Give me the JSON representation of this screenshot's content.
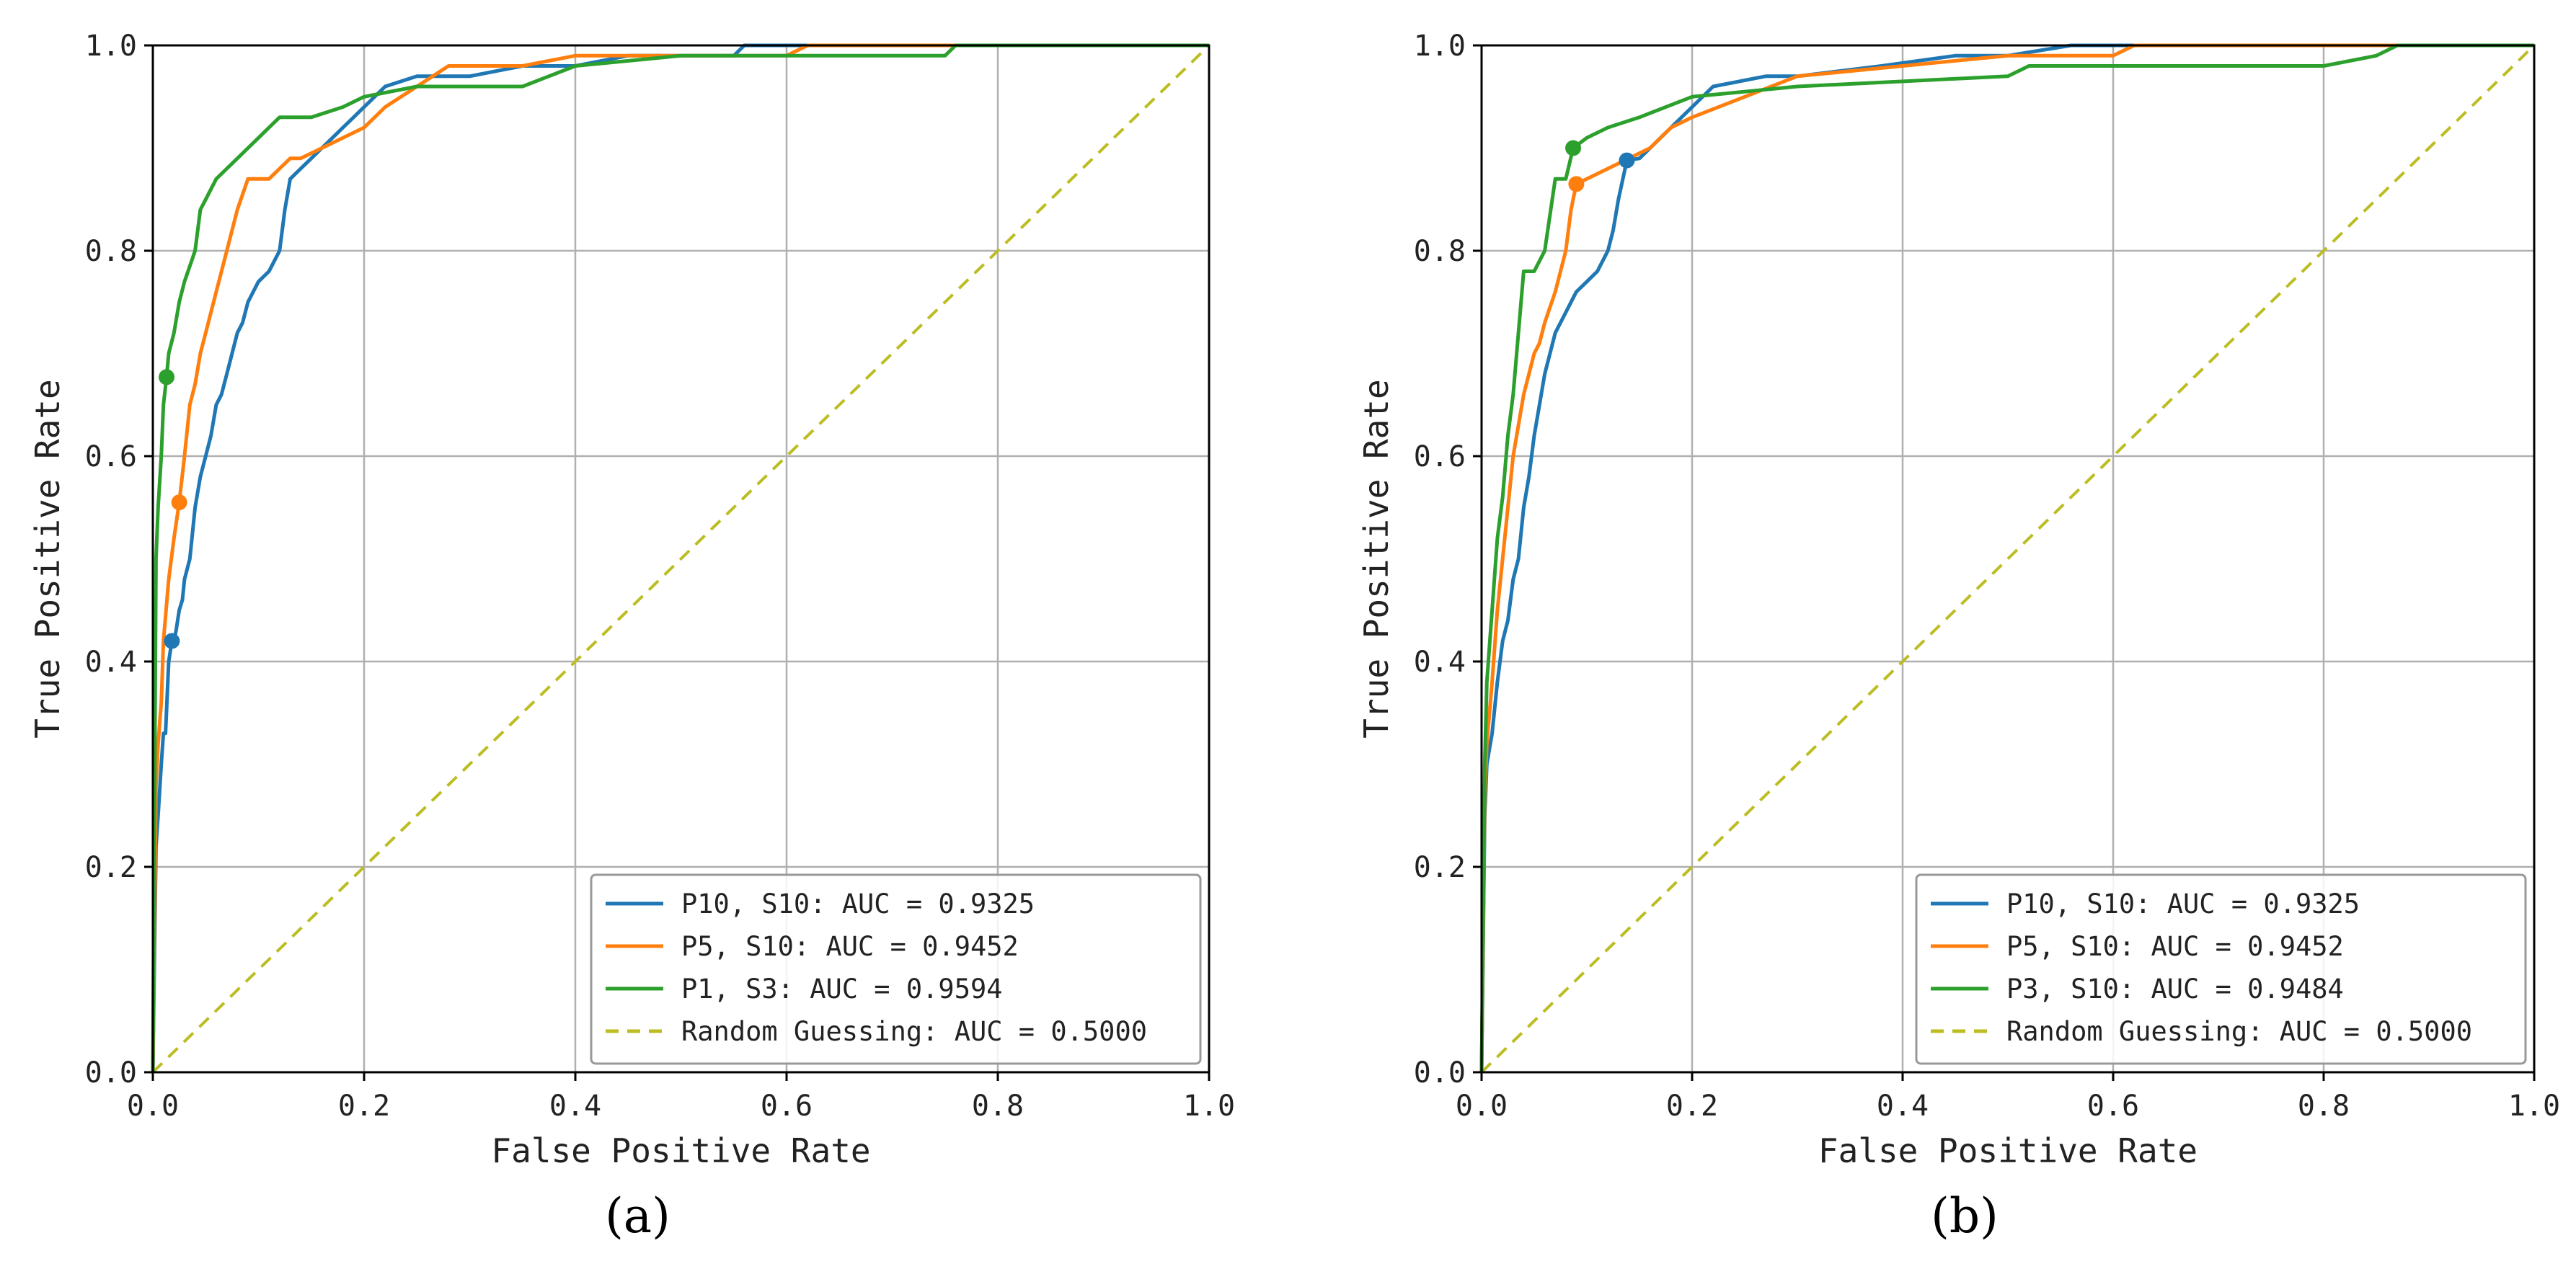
{
  "colors": {
    "blue": "#1f77b4",
    "orange": "#ff7f0e",
    "green": "#2ca02c",
    "olive": "#bcbd22"
  },
  "chart_data": [
    {
      "id": "a",
      "panel_label": "(a)",
      "type": "line",
      "xlabel": "False Positive Rate",
      "ylabel": "True Positive Rate",
      "xlim": [
        0,
        1
      ],
      "ylim": [
        0,
        1
      ],
      "xticks": [
        "0.0",
        "0.2",
        "0.4",
        "0.6",
        "0.8",
        "1.0"
      ],
      "yticks": [
        "0.0",
        "0.2",
        "0.4",
        "0.6",
        "0.8",
        "1.0"
      ],
      "grid": true,
      "legend_position": "lower-right",
      "series": [
        {
          "name": "P10, S10: AUC = 0.9325",
          "color": "blue",
          "marker": [
            0.018,
            0.42
          ],
          "x": [
            0,
            0.003,
            0.005,
            0.008,
            0.01,
            0.012,
            0.015,
            0.018,
            0.02,
            0.022,
            0.025,
            0.028,
            0.03,
            0.035,
            0.04,
            0.045,
            0.05,
            0.055,
            0.06,
            0.065,
            0.07,
            0.075,
            0.08,
            0.085,
            0.09,
            0.095,
            0.1,
            0.11,
            0.12,
            0.125,
            0.13,
            0.14,
            0.15,
            0.16,
            0.17,
            0.18,
            0.19,
            0.2,
            0.22,
            0.25,
            0.27,
            0.3,
            0.35,
            0.4,
            0.45,
            0.5,
            0.55,
            0.56,
            0.6,
            0.7,
            0.8,
            0.9,
            1.0
          ],
          "y": [
            0,
            0.22,
            0.25,
            0.3,
            0.33,
            0.33,
            0.4,
            0.42,
            0.42,
            0.43,
            0.45,
            0.46,
            0.48,
            0.5,
            0.55,
            0.58,
            0.6,
            0.62,
            0.65,
            0.66,
            0.68,
            0.7,
            0.72,
            0.73,
            0.75,
            0.76,
            0.77,
            0.78,
            0.8,
            0.84,
            0.87,
            0.88,
            0.89,
            0.9,
            0.91,
            0.92,
            0.93,
            0.94,
            0.96,
            0.97,
            0.97,
            0.97,
            0.98,
            0.98,
            0.99,
            0.99,
            0.99,
            1.0,
            1.0,
            1.0,
            1.0,
            1.0,
            1.0
          ]
        },
        {
          "name": "P5, S10: AUC = 0.9452",
          "color": "orange",
          "marker": [
            0.025,
            0.555
          ],
          "x": [
            0,
            0.003,
            0.005,
            0.008,
            0.01,
            0.015,
            0.02,
            0.025,
            0.03,
            0.035,
            0.04,
            0.045,
            0.05,
            0.055,
            0.06,
            0.07,
            0.08,
            0.09,
            0.1,
            0.11,
            0.12,
            0.13,
            0.14,
            0.16,
            0.18,
            0.2,
            0.22,
            0.25,
            0.28,
            0.35,
            0.4,
            0.45,
            0.5,
            0.6,
            0.62,
            0.7,
            0.8,
            0.9,
            1.0
          ],
          "y": [
            0,
            0.28,
            0.32,
            0.36,
            0.42,
            0.48,
            0.52,
            0.555,
            0.6,
            0.65,
            0.67,
            0.7,
            0.72,
            0.74,
            0.76,
            0.8,
            0.84,
            0.87,
            0.87,
            0.87,
            0.88,
            0.89,
            0.89,
            0.9,
            0.91,
            0.92,
            0.94,
            0.96,
            0.98,
            0.98,
            0.99,
            0.99,
            0.99,
            0.99,
            1.0,
            1.0,
            1.0,
            1.0,
            1.0
          ]
        },
        {
          "name": "P1, S3: AUC = 0.9594",
          "color": "green",
          "marker": [
            0.013,
            0.677
          ],
          "x": [
            0,
            0.003,
            0.005,
            0.008,
            0.01,
            0.013,
            0.015,
            0.02,
            0.025,
            0.03,
            0.04,
            0.045,
            0.05,
            0.06,
            0.07,
            0.08,
            0.09,
            0.1,
            0.11,
            0.12,
            0.13,
            0.15,
            0.18,
            0.2,
            0.25,
            0.3,
            0.35,
            0.4,
            0.5,
            0.6,
            0.7,
            0.75,
            0.76,
            0.8,
            0.9,
            1.0
          ],
          "y": [
            0,
            0.5,
            0.55,
            0.6,
            0.65,
            0.677,
            0.7,
            0.72,
            0.75,
            0.77,
            0.8,
            0.84,
            0.85,
            0.87,
            0.88,
            0.89,
            0.9,
            0.91,
            0.92,
            0.93,
            0.93,
            0.93,
            0.94,
            0.95,
            0.96,
            0.96,
            0.96,
            0.98,
            0.99,
            0.99,
            0.99,
            0.99,
            1.0,
            1.0,
            1.0,
            1.0
          ]
        },
        {
          "name": "Random Guessing: AUC = 0.5000",
          "color": "olive",
          "dashed": true,
          "x": [
            0,
            1
          ],
          "y": [
            0,
            1
          ]
        }
      ]
    },
    {
      "id": "b",
      "panel_label": "(b)",
      "type": "line",
      "xlabel": "False Positive Rate",
      "ylabel": "True Positive Rate",
      "xlim": [
        0,
        1
      ],
      "ylim": [
        0,
        1
      ],
      "xticks": [
        "0.0",
        "0.2",
        "0.4",
        "0.6",
        "0.8",
        "1.0"
      ],
      "yticks": [
        "0.0",
        "0.2",
        "0.4",
        "0.6",
        "0.8",
        "1.0"
      ],
      "grid": true,
      "legend_position": "lower-right",
      "series": [
        {
          "name": "P10, S10: AUC = 0.9325",
          "color": "blue",
          "marker": [
            0.138,
            0.888
          ],
          "x": [
            0,
            0.003,
            0.005,
            0.01,
            0.015,
            0.02,
            0.025,
            0.03,
            0.035,
            0.04,
            0.045,
            0.05,
            0.055,
            0.06,
            0.065,
            0.07,
            0.08,
            0.09,
            0.1,
            0.11,
            0.12,
            0.125,
            0.13,
            0.138,
            0.15,
            0.17,
            0.2,
            0.22,
            0.27,
            0.3,
            0.38,
            0.45,
            0.5,
            0.56,
            0.6,
            0.7,
            0.8,
            0.9,
            1.0
          ],
          "y": [
            0,
            0.25,
            0.3,
            0.33,
            0.38,
            0.42,
            0.44,
            0.48,
            0.5,
            0.55,
            0.58,
            0.62,
            0.65,
            0.68,
            0.7,
            0.72,
            0.74,
            0.76,
            0.77,
            0.78,
            0.8,
            0.82,
            0.85,
            0.888,
            0.89,
            0.91,
            0.94,
            0.96,
            0.97,
            0.97,
            0.98,
            0.99,
            0.99,
            1.0,
            1.0,
            1.0,
            1.0,
            1.0,
            1.0
          ]
        },
        {
          "name": "P5, S10: AUC = 0.9452",
          "color": "orange",
          "marker": [
            0.09,
            0.865
          ],
          "x": [
            0,
            0.003,
            0.005,
            0.01,
            0.015,
            0.02,
            0.025,
            0.03,
            0.035,
            0.04,
            0.045,
            0.05,
            0.055,
            0.06,
            0.07,
            0.08,
            0.085,
            0.09,
            0.1,
            0.12,
            0.14,
            0.16,
            0.18,
            0.2,
            0.25,
            0.3,
            0.4,
            0.5,
            0.6,
            0.62,
            0.7,
            0.8,
            0.9,
            1.0
          ],
          "y": [
            0,
            0.27,
            0.32,
            0.38,
            0.45,
            0.5,
            0.55,
            0.6,
            0.63,
            0.66,
            0.68,
            0.7,
            0.71,
            0.73,
            0.76,
            0.8,
            0.84,
            0.865,
            0.87,
            0.88,
            0.89,
            0.9,
            0.92,
            0.93,
            0.95,
            0.97,
            0.98,
            0.99,
            0.99,
            1.0,
            1.0,
            1.0,
            1.0,
            1.0
          ]
        },
        {
          "name": "P3, S10: AUC = 0.9484",
          "color": "green",
          "marker": [
            0.087,
            0.9
          ],
          "x": [
            0,
            0.003,
            0.005,
            0.01,
            0.015,
            0.02,
            0.025,
            0.03,
            0.035,
            0.04,
            0.05,
            0.06,
            0.07,
            0.08,
            0.087,
            0.1,
            0.12,
            0.15,
            0.2,
            0.3,
            0.5,
            0.52,
            0.6,
            0.7,
            0.8,
            0.85,
            0.87,
            0.9,
            1.0
          ],
          "y": [
            0,
            0.3,
            0.38,
            0.45,
            0.52,
            0.56,
            0.62,
            0.66,
            0.72,
            0.78,
            0.78,
            0.8,
            0.87,
            0.87,
            0.9,
            0.91,
            0.92,
            0.93,
            0.95,
            0.96,
            0.97,
            0.98,
            0.98,
            0.98,
            0.98,
            0.99,
            1.0,
            1.0,
            1.0
          ]
        },
        {
          "name": "Random Guessing: AUC = 0.5000",
          "color": "olive",
          "dashed": true,
          "x": [
            0,
            1
          ],
          "y": [
            0,
            1
          ]
        }
      ]
    }
  ]
}
